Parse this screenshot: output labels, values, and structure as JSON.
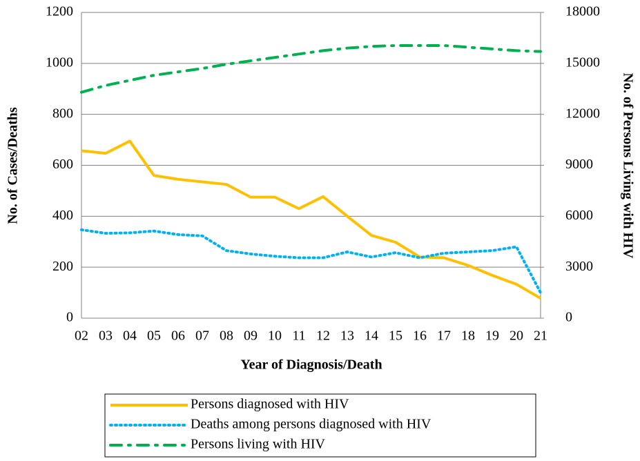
{
  "chart_data": {
    "type": "line",
    "x_label": "Year of Diagnosis/Death",
    "y_label": "No. of Cases/Deaths",
    "y2_label": "No. of Persons Living with HIV",
    "categories": [
      "02",
      "03",
      "04",
      "05",
      "06",
      "07",
      "08",
      "09",
      "10",
      "11",
      "12",
      "13",
      "14",
      "15",
      "16",
      "17",
      "18",
      "19",
      "20",
      "21"
    ],
    "ylim": [
      0,
      1200
    ],
    "yticks": [
      0,
      200,
      400,
      600,
      800,
      1000,
      1200
    ],
    "y2lim": [
      0,
      18000
    ],
    "y2ticks": [
      0,
      3000,
      6000,
      9000,
      12000,
      15000,
      18000
    ],
    "grid": true,
    "legend": "bottom",
    "series": [
      {
        "name": "Persons diagnosed with HIV",
        "color": "#FFC000",
        "linestyle": "solid",
        "values": [
          657,
          647,
          695,
          560,
          545,
          535,
          525,
          475,
          475,
          430,
          477,
          400,
          325,
          298,
          240,
          237,
          207,
          168,
          133,
          78
        ]
      },
      {
        "name": "Deaths among persons diagnosed with HIV",
        "color": "#00B0F0",
        "linestyle": "dotted",
        "values": [
          347,
          333,
          335,
          342,
          328,
          323,
          265,
          252,
          243,
          237,
          237,
          260,
          240,
          257,
          237,
          255,
          260,
          265,
          280,
          100
        ]
      },
      {
        "name": "Persons living with HIV",
        "color": "#00B050",
        "linestyle": "dashdot",
        "axis": "y2",
        "values": [
          13300,
          13700,
          14000,
          14300,
          14500,
          14700,
          14950,
          15150,
          15350,
          15550,
          15750,
          15900,
          16000,
          16050,
          16050,
          16050,
          15950,
          15850,
          15750,
          15700
        ]
      }
    ]
  }
}
